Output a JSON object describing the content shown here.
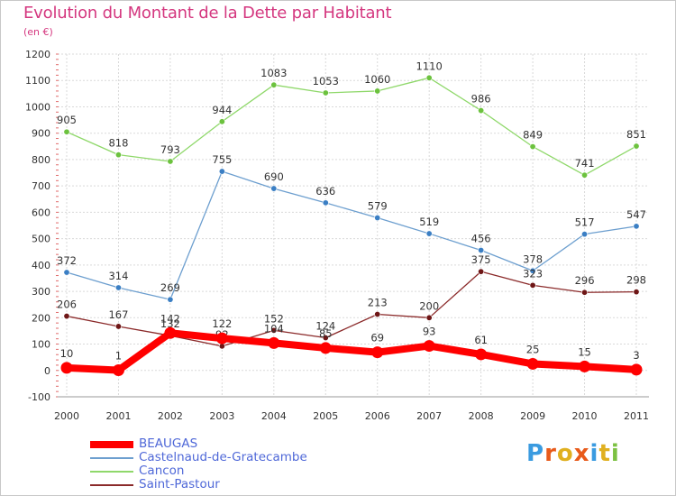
{
  "title": "Evolution du Montant de la Dette par Habitant",
  "subtitle": "(en €)",
  "logo": {
    "text": "Proxiti",
    "colors": [
      "#3a9be0",
      "#e85a1a",
      "#e0b020",
      "#e85a1a",
      "#3a9be0",
      "#e0b020",
      "#7cc142"
    ]
  },
  "chart_data": {
    "type": "line",
    "x": [
      "2000",
      "2001",
      "2002",
      "2003",
      "2004",
      "2005",
      "2006",
      "2007",
      "2008",
      "2009",
      "2010",
      "2011"
    ],
    "ylim": [
      -100,
      1200
    ],
    "yticks": [
      "-100",
      "0",
      "100",
      "200",
      "300",
      "400",
      "500",
      "600",
      "700",
      "800",
      "900",
      "1000",
      "1100",
      "1200"
    ],
    "grid": true,
    "legend_position": "bottom-left",
    "series": [
      {
        "name": "Castelnaud-de-Gratecambe",
        "color": "#6d9fcf",
        "marker": "#3b7fc4",
        "values": [
          372,
          314,
          269,
          755,
          690,
          636,
          579,
          519,
          456,
          378,
          517,
          547
        ],
        "labels": [
          "372",
          "314",
          "269",
          "755",
          "690",
          "636",
          "579",
          "519",
          "456",
          "378",
          "517",
          "547"
        ]
      },
      {
        "name": "Cancon",
        "color": "#8fd86a",
        "marker": "#6cc23e",
        "values": [
          905,
          818,
          793,
          944,
          1083,
          1053,
          1060,
          1110,
          986,
          849,
          741,
          851
        ],
        "labels": [
          "905",
          "818",
          "793",
          "944",
          "1083",
          "1053",
          "1060",
          "1110",
          "986",
          "849",
          "741",
          "851"
        ]
      },
      {
        "name": "Saint-Pastour",
        "color": "#8b2a2a",
        "marker": "#6e1616",
        "values": [
          206,
          167,
          132,
          92,
          152,
          124,
          213,
          200,
          375,
          323,
          296,
          298
        ],
        "labels": [
          "206",
          "167",
          "132",
          "92",
          "152",
          "124",
          "213",
          "200",
          "375",
          "323",
          "296",
          "298"
        ]
      },
      {
        "name": "BEAUGAS",
        "color": "#ff0000",
        "marker": "#ff0000",
        "values": [
          10,
          1,
          142,
          122,
          104,
          85,
          69,
          93,
          61,
          25,
          15,
          3
        ],
        "labels": [
          "10",
          "1",
          "142",
          "122",
          "104",
          "85",
          "69",
          "93",
          "61",
          "25",
          "15",
          "3"
        ]
      }
    ],
    "legend": [
      "BEAUGAS",
      "Castelnaud-de-Gratecambe",
      "Cancon",
      "Saint-Pastour"
    ]
  }
}
